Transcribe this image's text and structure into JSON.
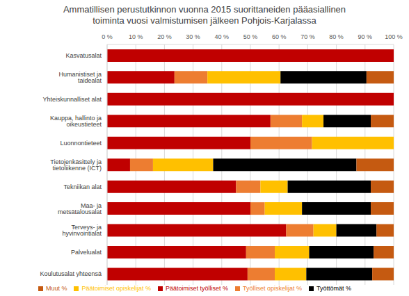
{
  "chart_data": {
    "type": "bar",
    "title": "Ammatillisen perustutkinnon vuonna 2015 suorittaneiden pääasiallinen toiminta vuosi valmistumisen jälkeen Pohjois-Karjalassa",
    "categories": [
      "Kasvatusalat",
      "Humanistiset ja taidealat",
      "Yhteiskunnalliset alat",
      "Kauppa, hallinto ja oikeustieteet",
      "Luonnontieteet",
      "Tietojenkäsittely ja tietoliikenne (ICT)",
      "Tekniikan alat",
      "Maa- ja metsätalousalat",
      "Terveys- ja hyvinvointialat",
      "Palvelualat",
      "Koulutusalat yhteensä"
    ],
    "series": [
      {
        "name": "Päätoimiset työlliset %",
        "color": "#c00000",
        "values": [
          100,
          23.5,
          100,
          57,
          50,
          8,
          45,
          50,
          62.5,
          48.5,
          49
        ]
      },
      {
        "name": "Työlliset opiskelijat %",
        "color": "#ed7d31",
        "values": [
          0,
          11.5,
          0,
          11,
          21.5,
          8,
          8.5,
          5,
          9.5,
          10,
          9.5
        ]
      },
      {
        "name": "Päätoimiset opiskelijat %",
        "color": "#ffc000",
        "values": [
          0,
          25.5,
          0,
          7.5,
          28.5,
          21,
          9.5,
          13,
          8,
          12,
          11
        ]
      },
      {
        "name": "Työttömät %",
        "color": "#000000",
        "values": [
          0,
          30,
          0,
          16.5,
          0,
          50,
          29,
          24,
          14,
          22.5,
          23
        ]
      },
      {
        "name": "Muut %",
        "color": "#c55a11",
        "values": [
          0,
          9.5,
          0,
          8,
          0,
          13,
          8,
          8,
          6,
          7,
          7.5
        ]
      }
    ],
    "xlim": [
      0,
      100
    ],
    "xticks": [
      {
        "value": 0,
        "label": "0 %"
      },
      {
        "value": 10,
        "label": "10 %"
      },
      {
        "value": 20,
        "label": "20 %"
      },
      {
        "value": 30,
        "label": "30 %"
      },
      {
        "value": 40,
        "label": "40 %"
      },
      {
        "value": 50,
        "label": "50 %"
      },
      {
        "value": 60,
        "label": "60 %"
      },
      {
        "value": 70,
        "label": "70 %"
      },
      {
        "value": 80,
        "label": "80 %"
      },
      {
        "value": 90,
        "label": "90 %"
      },
      {
        "value": 100,
        "label": "100 %"
      }
    ],
    "orientation": "horizontal",
    "stacked": true,
    "grid": true,
    "legend": "bottom"
  }
}
